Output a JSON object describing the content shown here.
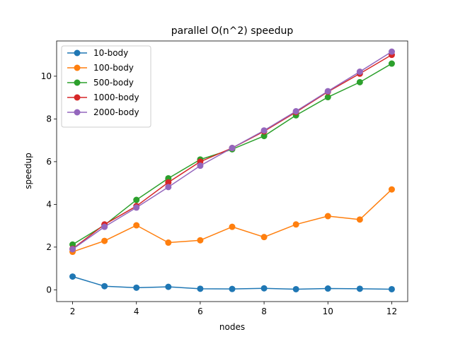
{
  "chart_data": {
    "type": "line",
    "title": "parallel O(n^2) speedup",
    "xlabel": "nodes",
    "ylabel": "speedup",
    "xlim": [
      1.5,
      12.5
    ],
    "ylim": [
      -0.55,
      11.65
    ],
    "xticks": [
      2,
      4,
      6,
      8,
      10,
      12
    ],
    "yticks": [
      0,
      2,
      4,
      6,
      8,
      10
    ],
    "grid": false,
    "legend_position": "top-left",
    "x": [
      2,
      3,
      4,
      5,
      6,
      7,
      8,
      9,
      10,
      11,
      12
    ],
    "series": [
      {
        "name": "10-body",
        "color": "#1f77b4",
        "values": [
          0.62,
          0.17,
          0.1,
          0.14,
          0.05,
          0.04,
          0.07,
          0.03,
          0.06,
          0.05,
          0.03
        ]
      },
      {
        "name": "100-body",
        "color": "#ff7f0e",
        "values": [
          1.78,
          2.29,
          3.02,
          2.21,
          2.32,
          2.95,
          2.47,
          3.06,
          3.45,
          3.29,
          4.7
        ]
      },
      {
        "name": "500-body",
        "color": "#2ca02c",
        "values": [
          2.12,
          3.03,
          4.21,
          5.22,
          6.1,
          6.58,
          7.2,
          8.17,
          9.02,
          9.72,
          10.59
        ]
      },
      {
        "name": "1000-body",
        "color": "#d62728",
        "values": [
          1.92,
          3.06,
          3.92,
          5.03,
          6.0,
          6.64,
          7.42,
          8.32,
          9.27,
          10.12,
          11.0
        ]
      },
      {
        "name": "2000-body",
        "color": "#9467bd",
        "values": [
          1.9,
          2.95,
          3.85,
          4.81,
          5.81,
          6.64,
          7.46,
          8.36,
          9.3,
          10.21,
          11.15
        ]
      }
    ]
  }
}
